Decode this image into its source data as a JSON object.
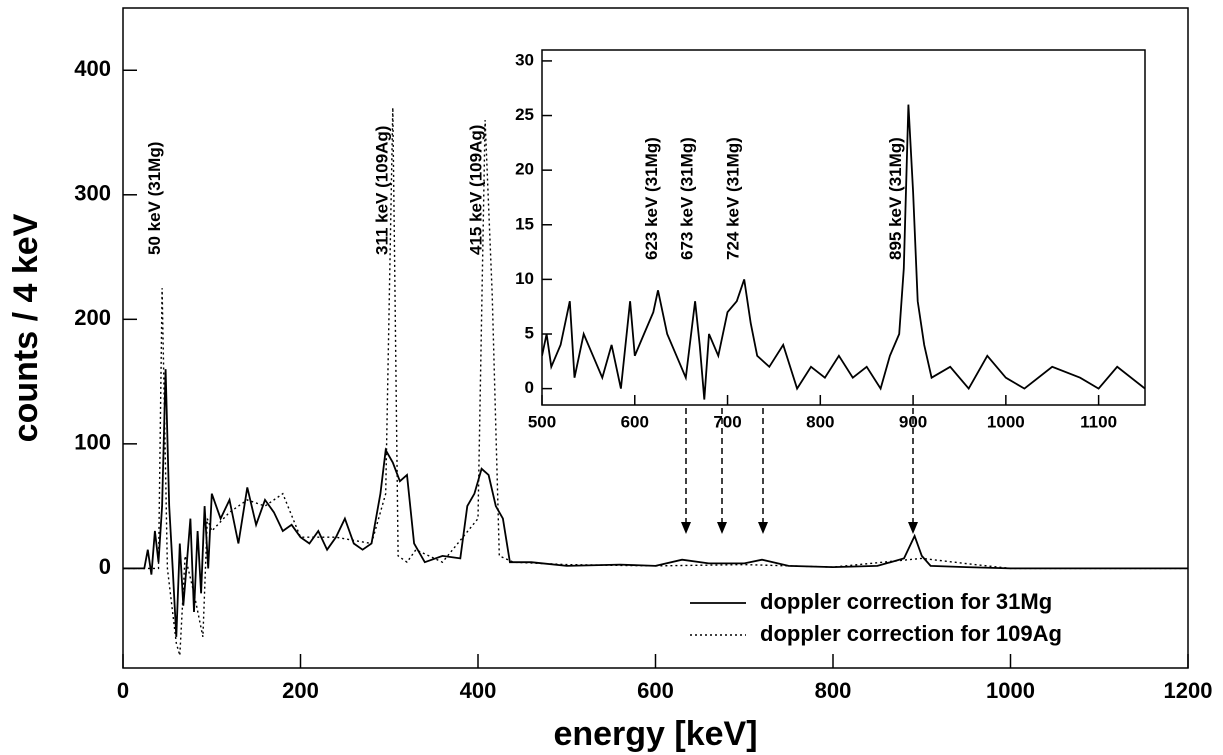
{
  "chart_data": [
    {
      "type": "line",
      "step": true,
      "xlabel": "energy [keV]",
      "ylabel": "counts / 4 keV",
      "xlim": [
        0,
        1200
      ],
      "ylim": [
        -80,
        450
      ],
      "xticks": [
        0,
        200,
        400,
        600,
        800,
        1000,
        1200
      ],
      "yticks": [
        0,
        100,
        200,
        300,
        400
      ],
      "legend": "lower right",
      "series": [
        {
          "name": "doppler correction for 31Mg",
          "color": "#000000",
          "dash": "solid",
          "x": [
            0,
            24,
            28,
            32,
            36,
            40,
            44,
            48,
            52,
            56,
            60,
            64,
            68,
            72,
            76,
            80,
            84,
            88,
            92,
            96,
            100,
            110,
            120,
            130,
            140,
            150,
            160,
            170,
            180,
            190,
            200,
            210,
            220,
            230,
            240,
            250,
            260,
            270,
            280,
            290,
            296,
            304,
            312,
            320,
            328,
            340,
            360,
            380,
            388,
            396,
            404,
            412,
            420,
            428,
            436,
            460,
            500,
            560,
            600,
            630,
            660,
            700,
            720,
            750,
            800,
            850,
            880,
            892,
            900,
            910,
            950,
            1000,
            1100,
            1200
          ],
          "values": [
            0,
            0,
            15,
            -5,
            30,
            5,
            50,
            160,
            50,
            0,
            -55,
            20,
            -30,
            5,
            40,
            -35,
            30,
            -20,
            50,
            0,
            60,
            40,
            55,
            20,
            65,
            35,
            55,
            45,
            30,
            35,
            25,
            20,
            30,
            15,
            25,
            40,
            20,
            15,
            20,
            60,
            95,
            85,
            70,
            75,
            20,
            5,
            10,
            8,
            50,
            60,
            80,
            75,
            50,
            40,
            5,
            5,
            2,
            3,
            2,
            7,
            4,
            4,
            7,
            2,
            1,
            2,
            8,
            26,
            10,
            2,
            1,
            0,
            0,
            0
          ]
        },
        {
          "name": "doppler correction for 109Ag",
          "color": "#000000",
          "dash": "dotted",
          "x": [
            0,
            40,
            44,
            50,
            60,
            64,
            70,
            80,
            90,
            95,
            100,
            120,
            140,
            160,
            180,
            200,
            240,
            280,
            296,
            304,
            310,
            320,
            330,
            360,
            400,
            408,
            416,
            424,
            440,
            500,
            600,
            700,
            800,
            900,
            960,
            1000,
            1200
          ],
          "values": [
            0,
            0,
            225,
            0,
            -60,
            -70,
            10,
            -20,
            -55,
            40,
            30,
            45,
            55,
            50,
            60,
            25,
            25,
            20,
            60,
            370,
            10,
            5,
            15,
            5,
            40,
            360,
            220,
            10,
            5,
            3,
            2,
            3,
            1,
            8,
            3,
            0,
            0
          ]
        }
      ],
      "annotations": [
        {
          "text": "50 keV  (31Mg)",
          "x": 48
        },
        {
          "text": "311 keV  (109Ag)",
          "x": 304
        },
        {
          "text": "415 keV  (109Ag)",
          "x": 410
        }
      ]
    },
    {
      "type": "line",
      "step": true,
      "xlim": [
        500,
        1150
      ],
      "ylim": [
        -1.5,
        31
      ],
      "xticks": [
        500,
        600,
        700,
        800,
        900,
        1000,
        1100
      ],
      "yticks": [
        0,
        5,
        10,
        15,
        20,
        25,
        30
      ],
      "series": [
        {
          "color": "#000000",
          "dash": "solid",
          "x": [
            500,
            505,
            510,
            520,
            530,
            535,
            545,
            555,
            565,
            575,
            585,
            595,
            600,
            610,
            620,
            625,
            635,
            645,
            655,
            665,
            670,
            675,
            680,
            690,
            700,
            710,
            718,
            725,
            732,
            745,
            760,
            775,
            790,
            805,
            820,
            835,
            850,
            865,
            875,
            885,
            890,
            895,
            900,
            905,
            912,
            920,
            940,
            960,
            980,
            1000,
            1020,
            1050,
            1080,
            1100,
            1120,
            1150
          ],
          "values": [
            3,
            5,
            2,
            4,
            8,
            1,
            5,
            3,
            1,
            4,
            0,
            8,
            3,
            5,
            7,
            9,
            5,
            3,
            1,
            8,
            4,
            -1,
            5,
            3,
            7,
            8,
            10,
            6,
            3,
            2,
            4,
            0,
            2,
            1,
            3,
            1,
            2,
            0,
            3,
            5,
            11,
            26,
            18,
            8,
            4,
            1,
            2,
            0,
            3,
            1,
            0,
            2,
            1,
            0,
            2,
            0
          ]
        }
      ],
      "annotations": [
        {
          "text": "623 keV  (31Mg)",
          "x": 630
        },
        {
          "text": "673 keV  (31Mg)",
          "x": 668
        },
        {
          "text": "724 keV  (31Mg)",
          "x": 718
        },
        {
          "text": "895 keV  (31Mg)",
          "x": 893
        }
      ]
    }
  ]
}
